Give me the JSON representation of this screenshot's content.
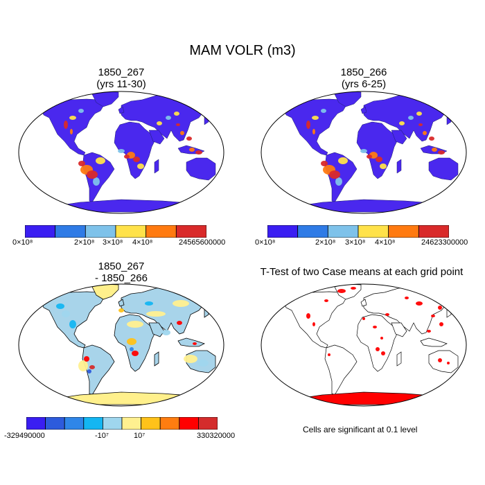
{
  "title": "MAM VOLR (m3)",
  "panels": [
    {
      "id": "case1",
      "title": "1850_267\n(yrs 11-30)"
    },
    {
      "id": "case2",
      "title": "1850_266\n(yrs 6-25)"
    },
    {
      "id": "diff",
      "title": "1850_267\n- 1850_266"
    },
    {
      "id": "ttest",
      "title": "T-Test of two Case means at each grid point"
    }
  ],
  "colorbars": {
    "case1": {
      "colors": [
        "#3a1ef2",
        "#2f7be6",
        "#7ec2ea",
        "#ffe24a",
        "#ff7a10",
        "#d92a2a"
      ],
      "labels": {
        "min": "0×10⁸",
        "t2": "2×10⁸",
        "t3": "3×10⁸",
        "t4": "4×10⁸",
        "max": "24565600000"
      }
    },
    "case2": {
      "colors": [
        "#3a1ef2",
        "#2f7be6",
        "#7ec2ea",
        "#ffe24a",
        "#ff7a10",
        "#d92a2a"
      ],
      "labels": {
        "min": "0×10⁸",
        "t2": "2×10⁸",
        "t3": "3×10⁸",
        "t4": "4×10⁸",
        "max": "24623300000"
      }
    },
    "diff": {
      "colors": [
        "#3a1ef2",
        "#2d5bdc",
        "#2f86e8",
        "#14b6f2",
        "#9fd6ee",
        "#fff090",
        "#ffc21a",
        "#ff7d10",
        "#ff0000",
        "#d42c2c"
      ],
      "labels": {
        "min": "-329490000",
        "neg": "-10⁷",
        "pos": "10⁷",
        "max": "330320000"
      }
    }
  },
  "ttest_note": "Cells are significant at 0.1 level",
  "map_colors": {
    "ocean": "#ffffff",
    "land_case": "#4a28ee",
    "land_diff": "#a8d4ea",
    "antarctica_diff": "#fff08c",
    "significant": "#ff0000",
    "coast": "#000000"
  }
}
